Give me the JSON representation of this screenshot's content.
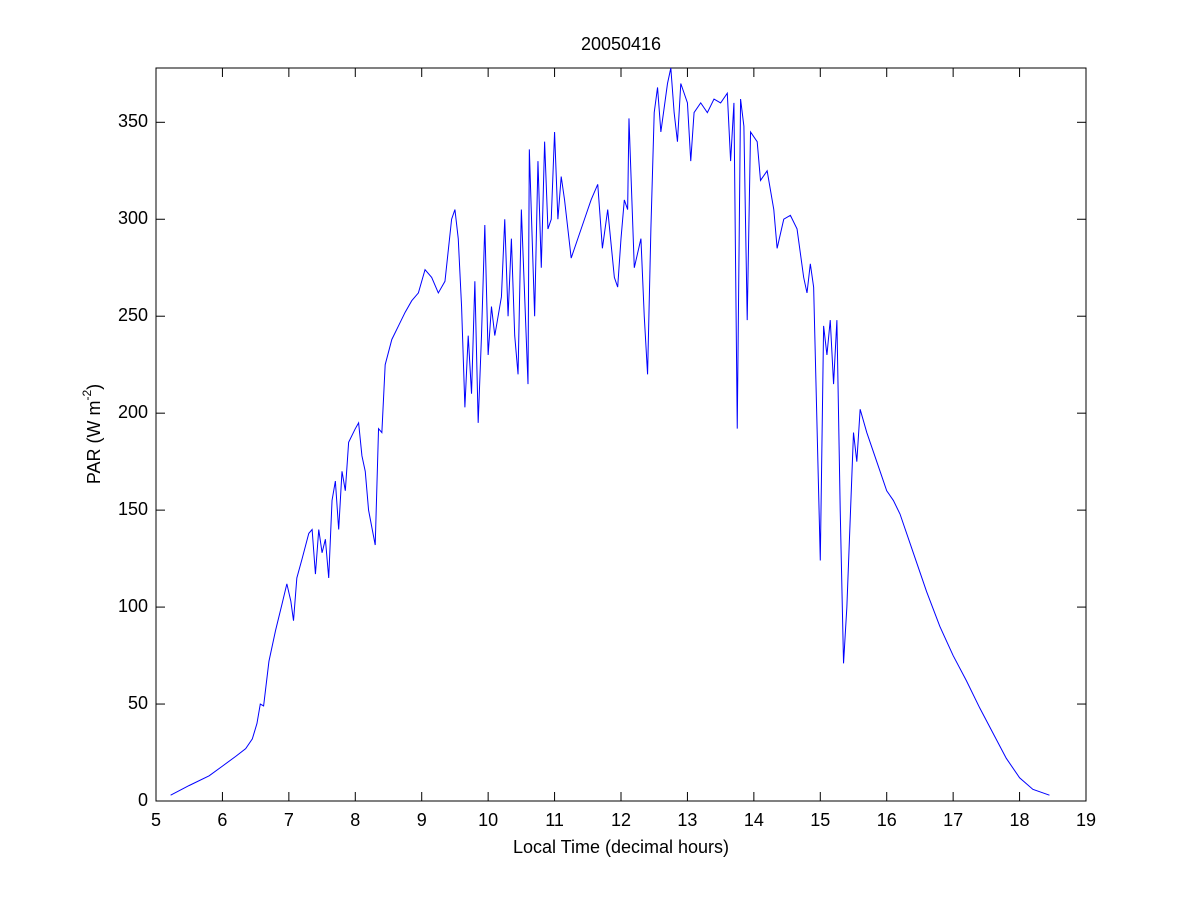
{
  "chart_data": {
    "type": "line",
    "title": "20050416",
    "xlabel": "Local Time (decimal hours)",
    "ylabel_parts": [
      "PAR (W m",
      "-2",
      ")"
    ],
    "xlim": [
      5,
      19
    ],
    "ylim": [
      0,
      378
    ],
    "xticks": [
      5,
      6,
      7,
      8,
      9,
      10,
      11,
      12,
      13,
      14,
      15,
      16,
      17,
      18,
      19
    ],
    "yticks": [
      0,
      50,
      100,
      150,
      200,
      250,
      300,
      350
    ],
    "grid": false,
    "series": [
      {
        "color": "#0000ff",
        "x": [
          5.22,
          5.5,
          5.8,
          6.0,
          6.2,
          6.35,
          6.45,
          6.52,
          6.57,
          6.62,
          6.7,
          6.8,
          6.9,
          6.97,
          7.03,
          7.07,
          7.12,
          7.2,
          7.3,
          7.35,
          7.4,
          7.45,
          7.5,
          7.55,
          7.6,
          7.65,
          7.7,
          7.75,
          7.8,
          7.85,
          7.9,
          8.0,
          8.05,
          8.1,
          8.15,
          8.2,
          8.3,
          8.35,
          8.4,
          8.45,
          8.55,
          8.65,
          8.75,
          8.85,
          8.95,
          9.05,
          9.15,
          9.25,
          9.35,
          9.45,
          9.5,
          9.55,
          9.6,
          9.65,
          9.7,
          9.75,
          9.8,
          9.85,
          9.9,
          9.95,
          10.0,
          10.05,
          10.1,
          10.2,
          10.25,
          10.3,
          10.35,
          10.4,
          10.45,
          10.5,
          10.55,
          10.6,
          10.62,
          10.7,
          10.75,
          10.8,
          10.85,
          10.9,
          10.95,
          11.0,
          11.05,
          11.1,
          11.15,
          11.25,
          11.35,
          11.45,
          11.55,
          11.65,
          11.72,
          11.8,
          11.9,
          11.95,
          12.0,
          12.05,
          12.1,
          12.12,
          12.2,
          12.3,
          12.35,
          12.4,
          12.45,
          12.5,
          12.55,
          12.6,
          12.7,
          12.75,
          12.8,
          12.85,
          12.9,
          13.0,
          13.05,
          13.1,
          13.2,
          13.3,
          13.4,
          13.5,
          13.6,
          13.65,
          13.7,
          13.75,
          13.8,
          13.85,
          13.9,
          13.95,
          14.05,
          14.1,
          14.2,
          14.3,
          14.35,
          14.45,
          14.55,
          14.65,
          14.75,
          14.8,
          14.85,
          14.9,
          15.0,
          15.05,
          15.1,
          15.15,
          15.2,
          15.25,
          15.3,
          15.35,
          15.4,
          15.5,
          15.55,
          15.6,
          15.7,
          15.8,
          15.9,
          16.0,
          16.1,
          16.2,
          16.4,
          16.6,
          16.8,
          17.0,
          17.2,
          17.4,
          17.6,
          17.8,
          18.0,
          18.2,
          18.45
        ],
        "values": [
          3,
          8,
          13,
          18,
          23,
          27,
          32,
          40,
          50,
          49,
          72,
          88,
          102,
          112,
          103,
          93,
          115,
          125,
          138,
          140,
          117,
          140,
          128,
          135,
          115,
          155,
          165,
          140,
          170,
          160,
          185,
          192,
          195,
          178,
          170,
          150,
          132,
          192,
          190,
          225,
          238,
          245,
          252,
          258,
          262,
          274,
          270,
          262,
          268,
          300,
          305,
          290,
          255,
          203,
          240,
          210,
          268,
          195,
          240,
          297,
          230,
          255,
          240,
          260,
          300,
          250,
          290,
          240,
          220,
          305,
          260,
          215,
          336,
          250,
          330,
          275,
          340,
          295,
          300,
          345,
          300,
          322,
          310,
          280,
          290,
          300,
          310,
          318,
          285,
          305,
          270,
          265,
          290,
          310,
          305,
          352,
          275,
          290,
          250,
          220,
          295,
          355,
          368,
          345,
          370,
          378,
          355,
          340,
          370,
          360,
          330,
          355,
          360,
          355,
          362,
          360,
          365,
          330,
          360,
          192,
          362,
          348,
          248,
          345,
          340,
          320,
          325,
          305,
          285,
          300,
          302,
          295,
          270,
          262,
          277,
          265,
          124,
          245,
          230,
          248,
          215,
          248,
          150,
          71,
          100,
          190,
          175,
          202,
          190,
          180,
          170,
          160,
          155,
          148,
          128,
          108,
          90,
          75,
          62,
          48,
          35,
          22,
          12,
          6,
          3
        ]
      }
    ]
  }
}
